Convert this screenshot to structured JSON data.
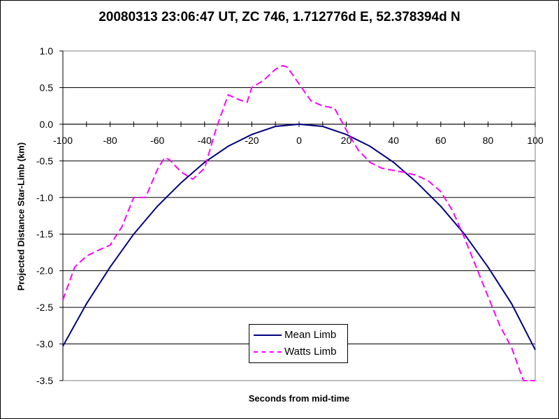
{
  "chart_data": {
    "type": "line",
    "title": "20080313 23:06:47 UT, ZC 746, 1.712776d E, 52.378394d N",
    "xlabel": "Seconds from mid-time",
    "ylabel": "Projected Distance Star-Limb (km)",
    "xlim": [
      -100,
      100
    ],
    "ylim": [
      -3.5,
      1.0
    ],
    "xticks": [
      -100,
      -80,
      -60,
      -40,
      -20,
      0,
      20,
      40,
      60,
      80,
      100
    ],
    "yticks": [
      1.0,
      0.5,
      0.0,
      -0.5,
      -1.0,
      -1.5,
      -2.0,
      -2.5,
      -3.0,
      -3.5
    ],
    "xtick_labels": [
      "-100",
      "-80",
      "-60",
      "-40",
      "-20",
      "0",
      "20",
      "40",
      "60",
      "80",
      "100"
    ],
    "ytick_labels": [
      "1.0",
      "0.5",
      "0.0",
      "-0.5",
      "-1.0",
      "-1.5",
      "-2.0",
      "-2.5",
      "-3.0",
      "-3.5"
    ],
    "grid": "horizontal",
    "legend_position": "bottom-center",
    "series": [
      {
        "name": "Mean Limb",
        "color": "#000080",
        "style": "solid",
        "x": [
          -100,
          -90,
          -80,
          -70,
          -60,
          -50,
          -40,
          -30,
          -20,
          -10,
          0,
          10,
          20,
          30,
          40,
          50,
          60,
          70,
          80,
          90,
          100
        ],
        "y": [
          -3.03,
          -2.45,
          -1.95,
          -1.5,
          -1.12,
          -0.8,
          -0.52,
          -0.3,
          -0.14,
          -0.03,
          0.0,
          -0.03,
          -0.14,
          -0.3,
          -0.52,
          -0.8,
          -1.12,
          -1.5,
          -1.95,
          -2.45,
          -3.08
        ]
      },
      {
        "name": "Watts Limb",
        "color": "#FF00FF",
        "style": "dashed",
        "x": [
          -100,
          -95,
          -90,
          -85,
          -80,
          -75,
          -70,
          -65,
          -60,
          -57,
          -55,
          -50,
          -45,
          -40,
          -35,
          -30,
          -25,
          -22,
          -20,
          -15,
          -10,
          -7,
          -5,
          0,
          5,
          10,
          15,
          20,
          25,
          30,
          35,
          40,
          45,
          50,
          55,
          60,
          65,
          70,
          75,
          80,
          85,
          90,
          95,
          100
        ],
        "y": [
          -2.4,
          -1.95,
          -1.8,
          -1.72,
          -1.65,
          -1.4,
          -1.0,
          -1.0,
          -0.62,
          -0.46,
          -0.48,
          -0.65,
          -0.75,
          -0.6,
          -0.05,
          0.4,
          0.33,
          0.3,
          0.5,
          0.6,
          0.75,
          0.8,
          0.78,
          0.55,
          0.32,
          0.25,
          0.22,
          -0.08,
          -0.35,
          -0.52,
          -0.6,
          -0.63,
          -0.66,
          -0.7,
          -0.78,
          -0.92,
          -1.18,
          -1.55,
          -1.95,
          -2.35,
          -2.75,
          -3.05,
          -3.5,
          -3.5
        ]
      }
    ]
  }
}
